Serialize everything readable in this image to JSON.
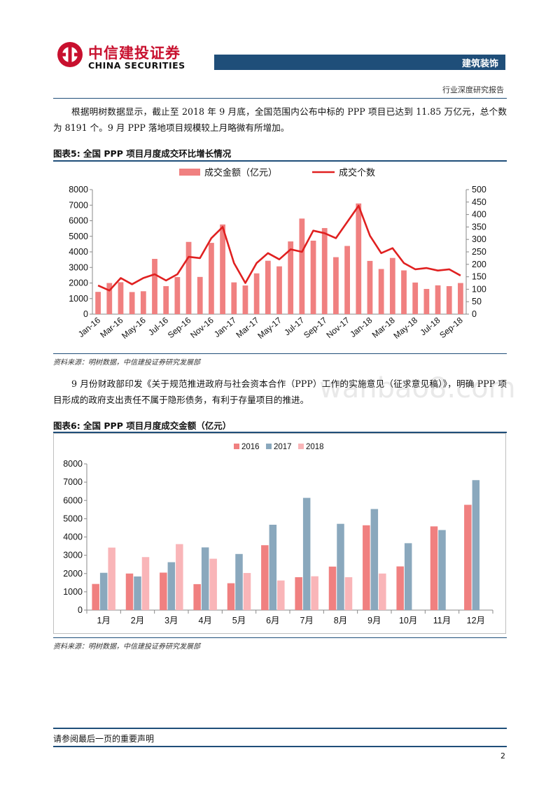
{
  "header": {
    "logo_cn": "中信建投证券",
    "logo_en": "CHINA SECURITIES",
    "section": "建筑装饰",
    "report_type": "行业深度研究报告"
  },
  "paragraphs": [
    "根据明树数据显示，截止至 2018 年 9 月底，全国范围内公布中标的 PPP 项目已达到 11.85 万亿元，总个数为 8191 个。9 月 PPP 落地项目规模较上月略微有所增加。",
    "9 月份财政部印发《关于规范推进政府与社会资本合作（PPP）工作的实施意见（征求意见稿）》，明确 PPP 项目形成的政府支出责任不属于隐形债务，有利于存量项目的推进。"
  ],
  "figures": [
    {
      "title": "图表5:   全国 PPP 项目月度成交环比增长情况",
      "source": "资料来源：明树数据，中信建投证券研究发展部"
    },
    {
      "title": "图表6:   全国 PPP 项目月度成交金额（亿元）",
      "source": "资料来源：明树数据，中信建投证券研究发展部"
    }
  ],
  "watermark": "wanbao8.com",
  "footer": {
    "note": "请参阅最后一页的重要声明",
    "page": "2"
  },
  "colors": {
    "navy": "#1f4e79",
    "bar1": "#f08080",
    "line1": "#e02020",
    "s2016": "#f08080",
    "s2017": "#8aa8bd",
    "s2018": "#f9b5b8"
  },
  "chart_data": [
    {
      "type": "bar",
      "title": "",
      "categories": [
        "Jan-16",
        "Feb-16",
        "Mar-16",
        "Apr-16",
        "May-16",
        "Jun-16",
        "Jul-16",
        "Aug-16",
        "Sep-16",
        "Oct-16",
        "Nov-16",
        "Dec-16",
        "Jan-17",
        "Feb-17",
        "Mar-17",
        "Apr-17",
        "May-17",
        "Jun-17",
        "Jul-17",
        "Aug-17",
        "Sep-17",
        "Oct-17",
        "Nov-17",
        "Dec-17",
        "Jan-18",
        "Feb-18",
        "Mar-18",
        "Apr-18",
        "May-18",
        "Jun-18",
        "Jul-18",
        "Aug-18",
        "Sep-18"
      ],
      "tick_labels": [
        "Jan-16",
        "Mar-16",
        "May-16",
        "Jul-16",
        "Sep-16",
        "Nov-16",
        "Jan-17",
        "Mar-17",
        "May-17",
        "Jul-17",
        "Sep-17",
        "Nov-17",
        "Jan-18",
        "Mar-18",
        "May-18",
        "Jul-18",
        "Sep-18"
      ],
      "series": [
        {
          "name": "成交金额（亿元）",
          "kind": "bar",
          "axis": "left",
          "values": [
            1430,
            2000,
            2050,
            1420,
            1470,
            3550,
            1800,
            2380,
            4640,
            2390,
            4580,
            5760,
            2040,
            1840,
            2620,
            3430,
            3070,
            4670,
            6140,
            4720,
            5530,
            3660,
            4380,
            7110,
            3420,
            2900,
            3610,
            2810,
            2030,
            1620,
            1850,
            1800,
            2000
          ]
        },
        {
          "name": "成交个数",
          "kind": "line",
          "axis": "right",
          "values": [
            115,
            95,
            145,
            120,
            145,
            160,
            135,
            160,
            230,
            225,
            305,
            350,
            205,
            125,
            205,
            245,
            220,
            260,
            250,
            335,
            325,
            305,
            370,
            435,
            315,
            245,
            265,
            205,
            180,
            185,
            175,
            180,
            155
          ]
        }
      ],
      "y_left": {
        "min": 0,
        "max": 8000,
        "ticks": [
          0,
          1000,
          2000,
          3000,
          4000,
          5000,
          6000,
          7000,
          8000
        ]
      },
      "y_right": {
        "min": 0,
        "max": 500,
        "ticks": [
          0,
          50,
          100,
          150,
          200,
          250,
          300,
          350,
          400,
          450,
          500
        ]
      },
      "legend_position": "top"
    },
    {
      "type": "bar",
      "title": "",
      "categories": [
        "1月",
        "2月",
        "3月",
        "4月",
        "5月",
        "6月",
        "7月",
        "8月",
        "9月",
        "10月",
        "11月",
        "12月"
      ],
      "series": [
        {
          "name": "2016",
          "values": [
            1430,
            2000,
            2050,
            1420,
            1470,
            3550,
            1800,
            2380,
            4640,
            2390,
            4580,
            5760
          ]
        },
        {
          "name": "2017",
          "values": [
            2040,
            1840,
            2620,
            3430,
            3070,
            4670,
            6140,
            4720,
            5530,
            3660,
            4380,
            7110
          ]
        },
        {
          "name": "2018",
          "values": [
            3420,
            2900,
            3610,
            2810,
            2030,
            1620,
            1850,
            1800,
            2000,
            null,
            null,
            null
          ]
        }
      ],
      "y": {
        "min": 0,
        "max": 8000,
        "ticks": [
          0,
          1000,
          2000,
          3000,
          4000,
          5000,
          6000,
          7000,
          8000
        ]
      },
      "legend_position": "top"
    }
  ]
}
